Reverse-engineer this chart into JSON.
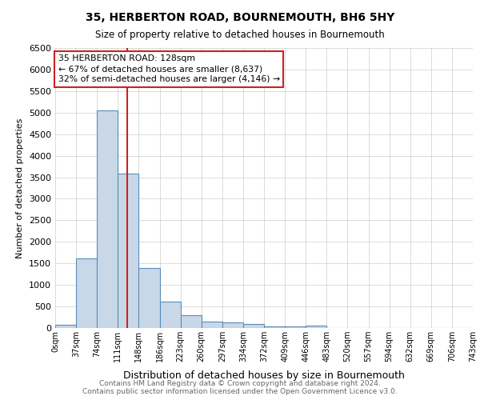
{
  "title": "35, HERBERTON ROAD, BOURNEMOUTH, BH6 5HY",
  "subtitle": "Size of property relative to detached houses in Bournemouth",
  "xlabel": "Distribution of detached houses by size in Bournemouth",
  "ylabel": "Number of detached properties",
  "footnote1": "Contains HM Land Registry data © Crown copyright and database right 2024.",
  "footnote2": "Contains public sector information licensed under the Open Government Licence v3.0.",
  "bin_edges": [
    0,
    37,
    74,
    111,
    148,
    185,
    222,
    259,
    296,
    333,
    370,
    407,
    444,
    481,
    518,
    555,
    592,
    629,
    666,
    703,
    740
  ],
  "bar_heights": [
    75,
    1620,
    5050,
    3580,
    1400,
    610,
    300,
    155,
    130,
    90,
    40,
    40,
    50,
    0,
    0,
    0,
    0,
    0,
    0,
    0
  ],
  "bar_color": "#c8d8e8",
  "bar_edge_color": "#5b8db8",
  "property_x": 128,
  "red_line_color": "#cc2222",
  "annotation_text_line1": "35 HERBERTON ROAD: 128sqm",
  "annotation_text_line2": "← 67% of detached houses are smaller (8,637)",
  "annotation_text_line3": "32% of semi-detached houses are larger (4,146) →",
  "annotation_box_color": "#ffffff",
  "annotation_box_edge_color": "#cc2222",
  "ylim": [
    0,
    6500
  ],
  "xlim": [
    0,
    740
  ],
  "tick_labels": [
    "0sqm",
    "37sqm",
    "74sqm",
    "111sqm",
    "148sqm",
    "186sqm",
    "223sqm",
    "260sqm",
    "297sqm",
    "334sqm",
    "372sqm",
    "409sqm",
    "446sqm",
    "483sqm",
    "520sqm",
    "557sqm",
    "594sqm",
    "632sqm",
    "669sqm",
    "706sqm",
    "743sqm"
  ],
  "yticks": [
    0,
    500,
    1000,
    1500,
    2000,
    2500,
    3000,
    3500,
    4000,
    4500,
    5000,
    5500,
    6000,
    6500
  ],
  "background_color": "#ffffff",
  "grid_color": "#cccccc"
}
